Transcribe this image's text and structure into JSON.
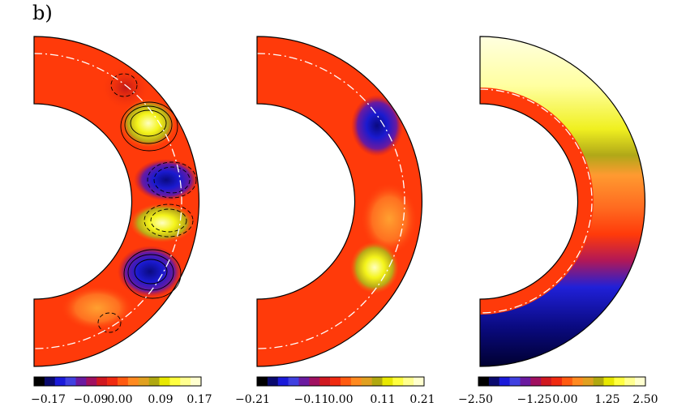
{
  "figure": {
    "panel_label": "b)",
    "panels": [
      {
        "name": "left",
        "colorbar_ticks": [
          "−0.17",
          "−0.09",
          "0.00",
          "0.09",
          "0.17"
        ]
      },
      {
        "name": "middle",
        "colorbar_ticks": [
          "−0.21",
          "−0.11",
          "0.00",
          "0.11",
          "0.21"
        ]
      },
      {
        "name": "right",
        "colorbar_ticks": [
          "−2.50",
          "−1.25",
          "0.00",
          "1.25",
          "2.50"
        ]
      }
    ],
    "colorbar_palette": [
      "#000000",
      "#0a0a6e",
      "#1a1ad9",
      "#4040e0",
      "#6a1aa0",
      "#a01060",
      "#d01820",
      "#f02a10",
      "#ff5a10",
      "#ff8a20",
      "#e0a020",
      "#b0a810",
      "#e8e800",
      "#ffff40",
      "#ffff90",
      "#ffffd0"
    ],
    "colors": {
      "background_red": "#ff3a0a",
      "blue": "#1a1ad0",
      "yellow": "#f4f41a",
      "pale_yellow": "#ffffb0"
    }
  }
}
